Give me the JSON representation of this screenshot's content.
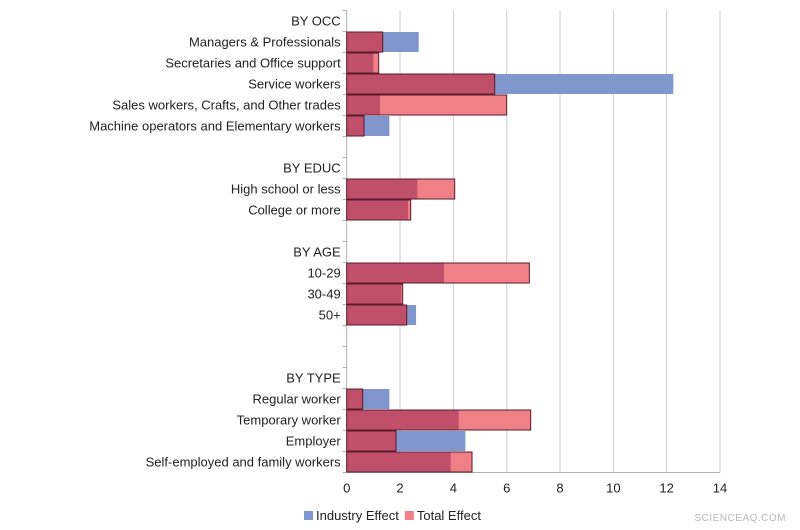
{
  "chart_data": {
    "type": "bar",
    "orientation": "horizontal",
    "overlapping": true,
    "categories": [
      "BY OCC",
      "Managers & Professionals",
      "Secretaries and Office support",
      "Service workers",
      "Sales workers, Crafts, and Other trades",
      "Machine operators and Elementary workers",
      "",
      "BY EDUC",
      "High school or less",
      "College or more",
      "",
      "BY AGE",
      "10-29",
      "30-49",
      "50+",
      "",
      "",
      "BY TYPE",
      "Regular worker",
      "Temporary worker",
      "Employer",
      "Self-employed and family workers"
    ],
    "series": [
      {
        "name": "Industry Effect",
        "color": "#8096cc",
        "values": [
          null,
          2.7,
          1.0,
          12.25,
          1.25,
          1.6,
          null,
          null,
          2.65,
          2.3,
          null,
          null,
          3.65,
          2.05,
          2.6,
          null,
          null,
          null,
          1.6,
          4.2,
          4.45,
          3.9
        ]
      },
      {
        "name": "Total Effect",
        "color": "#f08088",
        "values": [
          null,
          1.35,
          1.2,
          5.55,
          6.0,
          0.65,
          null,
          null,
          4.05,
          2.4,
          null,
          null,
          6.85,
          2.1,
          2.25,
          null,
          null,
          null,
          0.6,
          6.9,
          1.85,
          4.7
        ]
      }
    ],
    "overlap_color": "#c0506a",
    "xlim": [
      0,
      14
    ],
    "xticks": [
      0,
      2,
      4,
      6,
      8,
      10,
      12,
      14
    ],
    "grid": true,
    "legend_position": "bottom",
    "title": "",
    "xlabel": "",
    "ylabel": ""
  },
  "watermark": "SCIENCEAQ.COM"
}
